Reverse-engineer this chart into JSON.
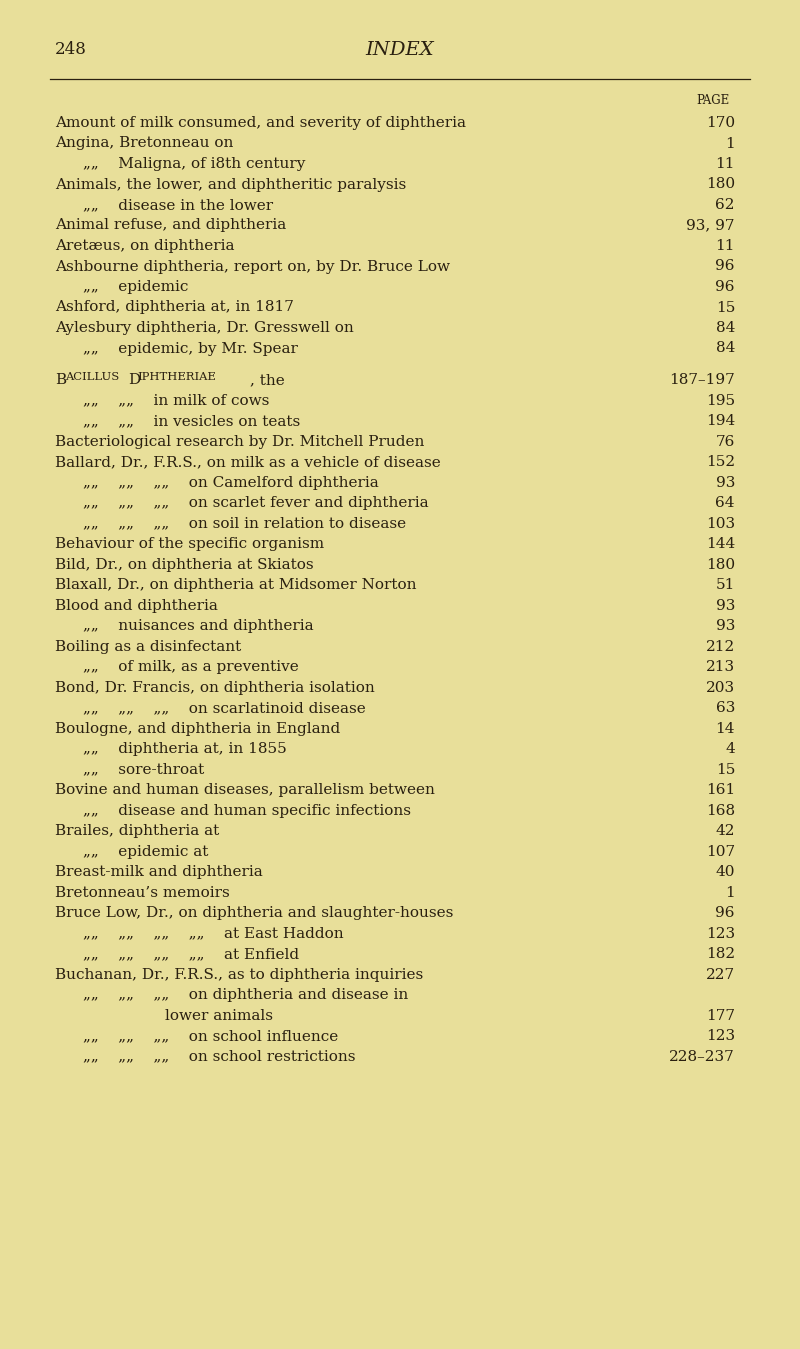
{
  "background_color": "#e8df9a",
  "page_number": "248",
  "page_title": "INDEX",
  "text_color": "#2a2010",
  "lines": [
    {
      "indent": 0,
      "text": "Amount of milk consumed, and severity of diphtheria",
      "dots": true,
      "page": "170"
    },
    {
      "indent": 0,
      "text": "Angina, Bretonneau on",
      "dots": true,
      "page": "1"
    },
    {
      "indent": 1,
      "text": "„„    Maligna, of i8th century",
      "dots": true,
      "page": "11"
    },
    {
      "indent": 0,
      "text": "Animals, the lower, and diphtheritic paralysis",
      "dots": true,
      "page": "180"
    },
    {
      "indent": 1,
      "text": "„„    disease in the lower",
      "dots": true,
      "page": "62"
    },
    {
      "indent": 0,
      "text": "Animal refuse, and diphtheria",
      "dots": true,
      "page": "93, 97"
    },
    {
      "indent": 0,
      "text": "Aretæus, on diphtheria",
      "dots": true,
      "page": "11"
    },
    {
      "indent": 0,
      "text": "Ashbourne diphtheria, report on, by Dr. Bruce Low",
      "dots": true,
      "page": "96"
    },
    {
      "indent": 1,
      "text": "„„    epidemic",
      "dots": true,
      "page": "96"
    },
    {
      "indent": 0,
      "text": "Ashford, diphtheria at, in 1817",
      "dots": true,
      "page": "15"
    },
    {
      "indent": 0,
      "text": "Aylesbury diphtheria, Dr. Gresswell on",
      "dots": true,
      "page": "84"
    },
    {
      "indent": 1,
      "text": "„„    epidemic, by Mr. Spear",
      "dots": true,
      "page": "84"
    },
    {
      "indent": -1,
      "text": "",
      "dots": false,
      "page": ""
    },
    {
      "indent": 0,
      "text": "Bacillus diphtheriae, the",
      "dots": true,
      "page": "187–197",
      "small_caps": true
    },
    {
      "indent": 2,
      "text": "„„    „„    in milk of cows",
      "dots": true,
      "page": "195"
    },
    {
      "indent": 2,
      "text": "„„    „„    in vesicles on teats",
      "dots": true,
      "page": "194"
    },
    {
      "indent": 0,
      "text": "Bacteriological research by Dr. Mitchell Pruden",
      "dots": true,
      "page": "76"
    },
    {
      "indent": 0,
      "text": "Ballard, Dr., F.R.S., on milk as a vehicle of disease",
      "dots": true,
      "page": "152"
    },
    {
      "indent": 2,
      "text": "„„    „„    „„    on Camelford diphtheria",
      "dots": true,
      "page": "93"
    },
    {
      "indent": 2,
      "text": "„„    „„    „„    on scarlet fever and diphtheria",
      "dots": true,
      "page": "64"
    },
    {
      "indent": 2,
      "text": "„„    „„    „„    on soil in relation to disease",
      "dots": true,
      "page": "103"
    },
    {
      "indent": 0,
      "text": "Behaviour of the specific organism",
      "dots": true,
      "page": "144"
    },
    {
      "indent": 0,
      "text": "Bild, Dr., on diphtheria at Skiatos",
      "dots": true,
      "page": "180"
    },
    {
      "indent": 0,
      "text": "Blaxall, Dr., on diphtheria at Midsomer Norton",
      "dots": true,
      "page": "51"
    },
    {
      "indent": 0,
      "text": "Blood and diphtheria",
      "dots": true,
      "page": "93"
    },
    {
      "indent": 1,
      "text": "„„    nuisances and diphtheria",
      "dots": true,
      "page": "93"
    },
    {
      "indent": 0,
      "text": "Boiling as a disinfectant",
      "dots": true,
      "page": "212"
    },
    {
      "indent": 1,
      "text": "„„    of milk, as a preventive",
      "dots": true,
      "page": "213"
    },
    {
      "indent": 0,
      "text": "Bond, Dr. Francis, on diphtheria isolation",
      "dots": true,
      "page": "203"
    },
    {
      "indent": 2,
      "text": "„„    „„    „„    on scarlatinoid disease",
      "dots": true,
      "page": "63"
    },
    {
      "indent": 0,
      "text": "Boulogne, and diphtheria in England",
      "dots": true,
      "page": "14"
    },
    {
      "indent": 1,
      "text": "„„    diphtheria at, in 1855",
      "dots": true,
      "page": "4"
    },
    {
      "indent": 1,
      "text": "„„    sore-throat",
      "dots": true,
      "page": "15"
    },
    {
      "indent": 0,
      "text": "Bovine and human diseases, parallelism between",
      "dots": true,
      "page": "161"
    },
    {
      "indent": 1,
      "text": "„„    disease and human specific infections",
      "dots": true,
      "page": "168"
    },
    {
      "indent": 0,
      "text": "Brailes, diphtheria at",
      "dots": true,
      "page": "42"
    },
    {
      "indent": 1,
      "text": "„„    epidemic at",
      "dots": true,
      "page": "107"
    },
    {
      "indent": 0,
      "text": "Breast-milk and diphtheria",
      "dots": true,
      "page": "40"
    },
    {
      "indent": 0,
      "text": "Bretonneau’s memoirs",
      "dots": true,
      "page": "1"
    },
    {
      "indent": 0,
      "text": "Bruce Low, Dr., on diphtheria and slaughter-houses",
      "dots": true,
      "page": "96"
    },
    {
      "indent": 2,
      "text": "„„    „„    „„    „„    at East Haddon",
      "dots": true,
      "page": "123"
    },
    {
      "indent": 2,
      "text": "„„    „„    „„    „„    at Enfield",
      "dots": true,
      "page": "182"
    },
    {
      "indent": 0,
      "text": "Buchanan, Dr., F.R.S., as to diphtheria inquiries",
      "dots": true,
      "page": "227"
    },
    {
      "indent": 2,
      "text": "„„    „„    „„    on diphtheria and disease in",
      "dots": false,
      "page": ""
    },
    {
      "indent": 3,
      "text": "lower animals",
      "dots": true,
      "page": "177"
    },
    {
      "indent": 2,
      "text": "„„    „„    „„    on school influence",
      "dots": true,
      "page": "123"
    },
    {
      "indent": 2,
      "text": "„„    „„    „„    on school restrictions",
      "dots": true,
      "page": "228–237"
    }
  ]
}
